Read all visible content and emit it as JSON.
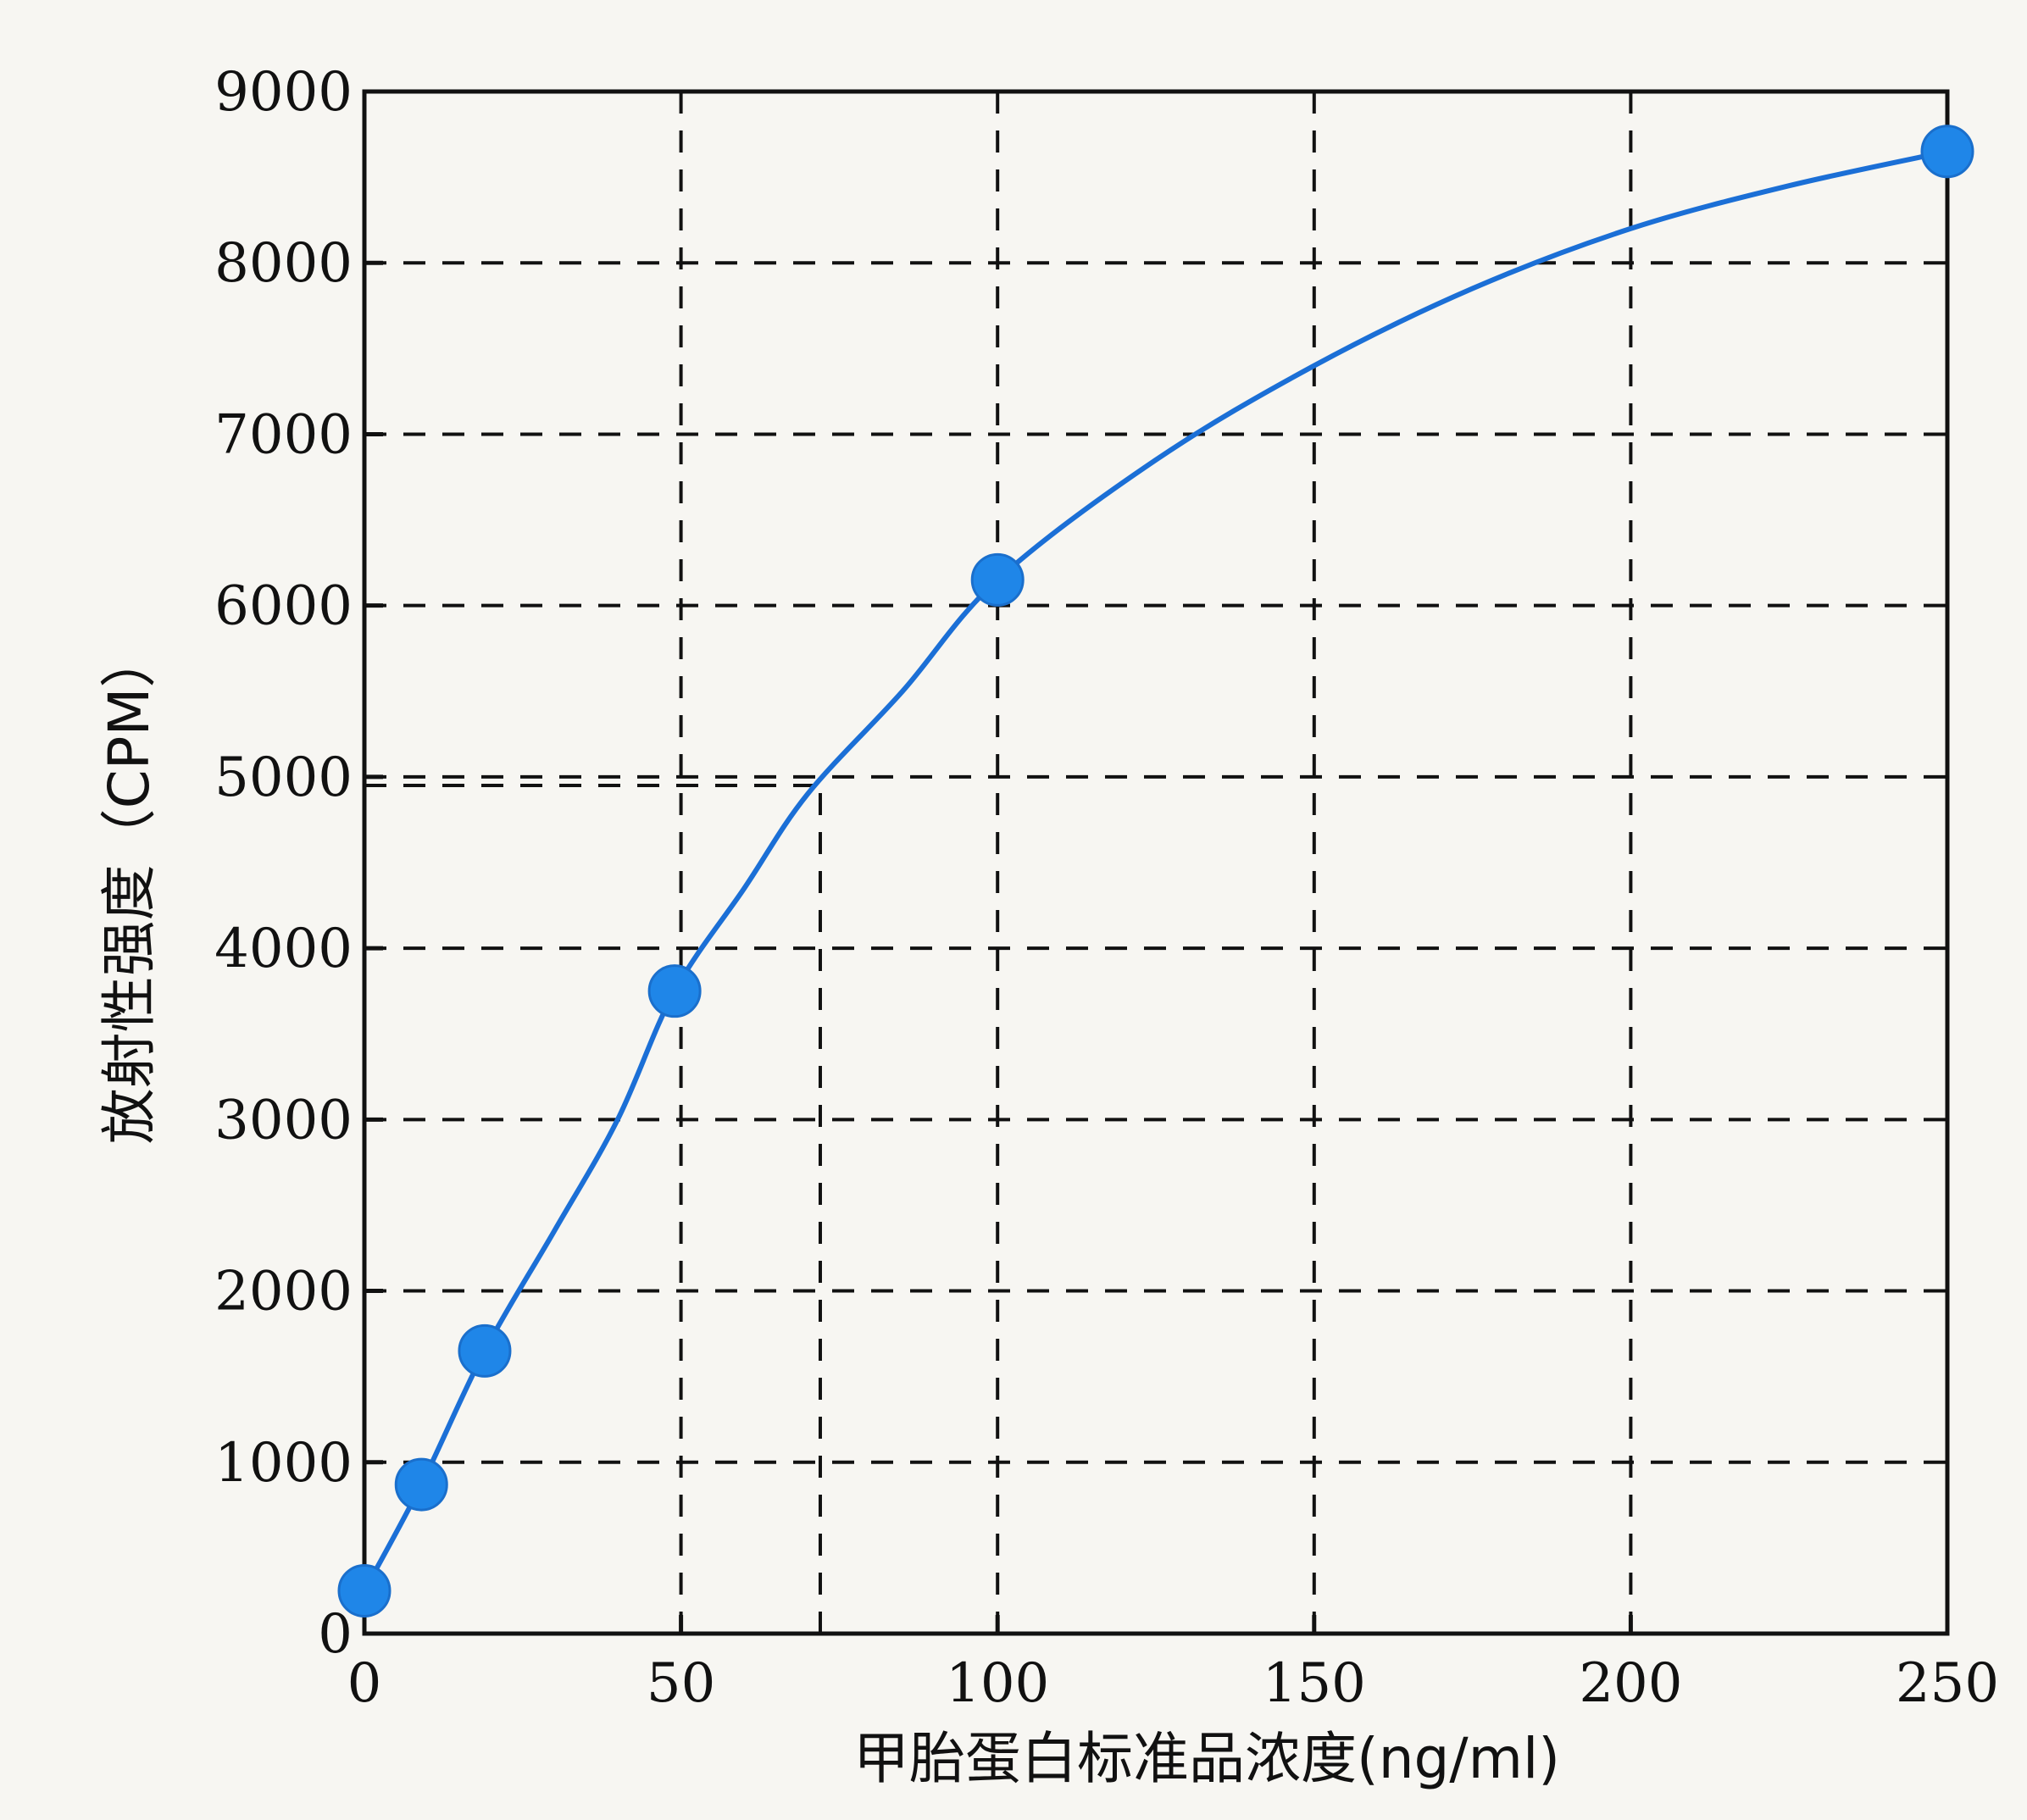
{
  "chart_data": {
    "type": "scatter",
    "title": "",
    "xlabel": "甲胎蛋白标准品浓度(ng/ml)",
    "ylabel": "放射性强度（CPM）",
    "xlim": [
      0,
      250
    ],
    "ylim": [
      0,
      9000
    ],
    "x_ticks": [
      "0",
      "50",
      "100",
      "150",
      "200",
      "250"
    ],
    "y_ticks": [
      "0",
      "1000",
      "2000",
      "3000",
      "4000",
      "5000",
      "6000",
      "7000",
      "8000",
      "9000"
    ],
    "grid": true,
    "series": [
      {
        "points": [
          {
            "x": 0,
            "y": 250
          },
          {
            "x": 9,
            "y": 870
          },
          {
            "x": 19,
            "y": 1650
          },
          {
            "x": 49,
            "y": 3750
          },
          {
            "x": 100,
            "y": 6150
          },
          {
            "x": 250,
            "y": 8650
          }
        ],
        "fit_curve": [
          {
            "x": 0,
            "y": 250
          },
          {
            "x": 9,
            "y": 870
          },
          {
            "x": 19,
            "y": 1650
          },
          {
            "x": 30,
            "y": 2350
          },
          {
            "x": 40,
            "y": 3000
          },
          {
            "x": 49,
            "y": 3750
          },
          {
            "x": 60,
            "y": 4350
          },
          {
            "x": 70,
            "y": 4900
          },
          {
            "x": 85,
            "y": 5500
          },
          {
            "x": 100,
            "y": 6150
          },
          {
            "x": 125,
            "y": 6850
          },
          {
            "x": 150,
            "y": 7400
          },
          {
            "x": 175,
            "y": 7850
          },
          {
            "x": 200,
            "y": 8200
          },
          {
            "x": 225,
            "y": 8450
          },
          {
            "x": 250,
            "y": 8650
          }
        ]
      }
    ],
    "annotations": [
      {
        "type": "dashed-guide-horizontal",
        "y": 4950,
        "x_from": 0,
        "x_to": 72
      },
      {
        "type": "dashed-guide-vertical",
        "x": 72,
        "y_from": 0,
        "y_to": 4950
      }
    ],
    "colors": {
      "marker": "#1f86e8",
      "curve": "#1b6fd6",
      "grid": "#111111",
      "axis": "#111111"
    }
  }
}
